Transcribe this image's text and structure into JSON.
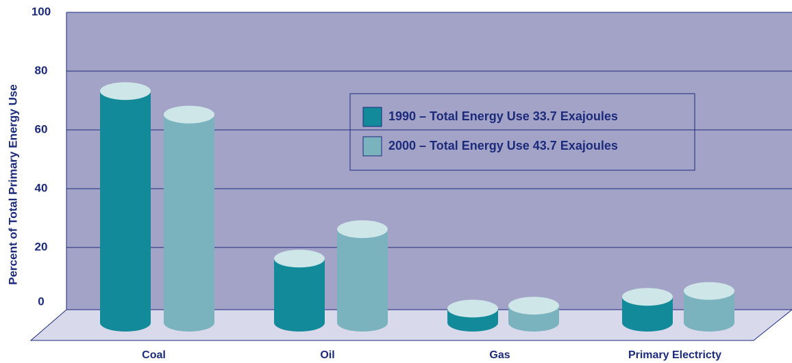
{
  "chart_data": {
    "type": "bar",
    "categories": [
      "Coal",
      "Oil",
      "Gas",
      "Primary Electricty"
    ],
    "y_label": "Percent of Total Primary Energy Use",
    "series": [
      {
        "name": "1990 – Total Energy Use 33.7 Exajoules",
        "color": "#138a9a",
        "values": [
          76,
          19,
          2,
          6
        ]
      },
      {
        "name": "2000 – Total Energy Use 43.7 Exajoules",
        "color": "#7ab2bd",
        "values": [
          68,
          29,
          3,
          8
        ]
      }
    ],
    "ylim": [
      0,
      100
    ],
    "yticks": [
      0,
      20,
      40,
      60,
      80,
      100
    ],
    "grid": true
  }
}
